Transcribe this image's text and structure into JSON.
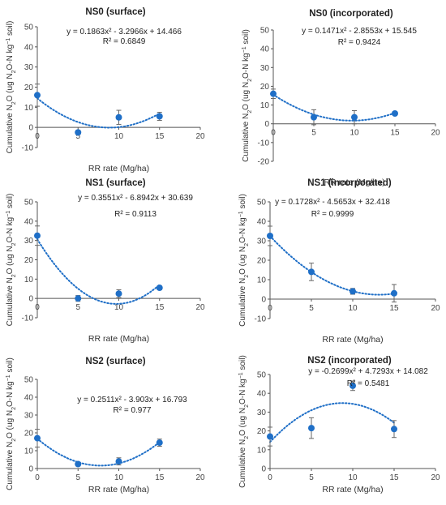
{
  "chart_data": [
    {
      "type": "scatter",
      "title": "NS0 (surface)",
      "xlabel": "RR rate (Mg/ha)",
      "ylabel_main": "Cumulative N",
      "ylabel_rest": "O (ug N",
      "ylabel_rest2": "O-N kg",
      "ylabel_rest3": " soil)",
      "xlim": [
        0,
        20
      ],
      "ylim": [
        -10,
        50
      ],
      "xticks": [
        "0",
        "5",
        "10",
        "15",
        "20"
      ],
      "yticks": [
        "-10",
        "0",
        "10",
        "20",
        "30",
        "40",
        "50"
      ],
      "x": [
        0,
        5,
        10,
        15
      ],
      "y": [
        16,
        -2.5,
        5,
        5.5
      ],
      "err": [
        5.5,
        1,
        3.5,
        2
      ],
      "fit": [
        0.1863,
        -3.2966,
        14.466
      ],
      "eq_text": "y = 0.1863x² - 3.2966x + 14.466",
      "r2_text": "R² = 0.6849",
      "color": "#1f6fc7"
    },
    {
      "type": "scatter",
      "title": "NS0 (incorporated)",
      "xlabel": "RR rate (Mg/ha)",
      "ylabel_main": "Cumulative N",
      "ylabel_rest": "O (ug N",
      "ylabel_rest2": "O-N kg",
      "ylabel_rest3": " soil)",
      "xlim": [
        0,
        20
      ],
      "ylim": [
        -20,
        50
      ],
      "xticks": [
        "0",
        "5",
        "10",
        "15",
        "20"
      ],
      "yticks": [
        "-20",
        "-10",
        "0",
        "10",
        "20",
        "30",
        "40",
        "50"
      ],
      "x": [
        0,
        5,
        10,
        15
      ],
      "y": [
        16,
        3.5,
        3.5,
        5.5
      ],
      "err": [
        2.5,
        4,
        3.5,
        1
      ],
      "fit": [
        0.1471,
        -2.8553,
        15.545
      ],
      "eq_text": "y = 0.1471x² - 2.8553x + 15.545",
      "r2_text": "R² = 0.9424",
      "color": "#1f6fc7"
    },
    {
      "type": "scatter",
      "title": "NS1 (surface)",
      "xlabel": "RR rate (Mg/ha)",
      "ylabel_main": "Cumulative N",
      "ylabel_rest": "O (ug N",
      "ylabel_rest2": "O-N kg",
      "ylabel_rest3": " soil)",
      "xlim": [
        0,
        20
      ],
      "ylim": [
        -10,
        50
      ],
      "xticks": [
        "0",
        "5",
        "10",
        "15",
        "20"
      ],
      "yticks": [
        "-10",
        "0",
        "10",
        "20",
        "30",
        "40",
        "50"
      ],
      "x": [
        0,
        5,
        10,
        15
      ],
      "y": [
        32.5,
        0,
        2.5,
        5.5
      ],
      "err": [
        5,
        1.5,
        2,
        1
      ],
      "fit": [
        0.3551,
        -6.8942,
        30.639
      ],
      "eq_text": "y = 0.3551x² - 6.8942x + 30.639",
      "r2_text": "R² = 0.9113",
      "color": "#1f6fc7"
    },
    {
      "type": "scatter",
      "title": "NS1 (incorporated)",
      "xlabel": "RR rate (Mg/ha)",
      "ylabel_main": "Cumulative N",
      "ylabel_rest": "O (ug N",
      "ylabel_rest2": "O-N kg",
      "ylabel_rest3": " soil)",
      "xlim": [
        0,
        20
      ],
      "ylim": [
        -10,
        50
      ],
      "xticks": [
        "0",
        "5",
        "10",
        "15",
        "20"
      ],
      "yticks": [
        "-10",
        "0",
        "10",
        "20",
        "30",
        "40",
        "50"
      ],
      "x": [
        0,
        5,
        10,
        15
      ],
      "y": [
        32.5,
        14,
        4,
        3
      ],
      "err": [
        5,
        4.5,
        1.5,
        4.5
      ],
      "fit": [
        0.1728,
        -4.5653,
        32.418
      ],
      "eq_text": "y = 0.1728x² - 4.5653x + 32.418",
      "r2_text": "R² = 0.9999",
      "color": "#1f6fc7"
    },
    {
      "type": "scatter",
      "title": "NS2 (surface)",
      "xlabel": "RR rate (Mg/ha)",
      "ylabel_main": "Cumulative N",
      "ylabel_rest": "O (ug N",
      "ylabel_rest2": "O-N kg",
      "ylabel_rest3": " soil)",
      "xlim": [
        0,
        20
      ],
      "ylim": [
        0,
        50
      ],
      "xticks": [
        "0",
        "5",
        "10",
        "15",
        "20"
      ],
      "yticks": [
        "0",
        "10",
        "20",
        "30",
        "40",
        "50"
      ],
      "x": [
        0,
        5,
        10,
        15
      ],
      "y": [
        17,
        2.5,
        4,
        14.5
      ],
      "err": [
        5,
        1,
        2,
        2
      ],
      "fit": [
        0.2511,
        -3.903,
        16.793
      ],
      "eq_text": "y = 0.2511x² - 3.903x + 16.793",
      "r2_text": "R² = 0.977",
      "color": "#1f6fc7"
    },
    {
      "type": "scatter",
      "title": "NS2 (incorporated)",
      "xlabel": "RR rate (Mg/ha)",
      "ylabel_main": "Cumulative N",
      "ylabel_rest": "O (ug N",
      "ylabel_rest2": "O-N kg",
      "ylabel_rest3": " soil)",
      "xlim": [
        0,
        20
      ],
      "ylim": [
        0,
        50
      ],
      "xticks": [
        "0",
        "5",
        "10",
        "15",
        "20"
      ],
      "yticks": [
        "0",
        "10",
        "20",
        "30",
        "40",
        "50"
      ],
      "x": [
        0,
        5,
        10,
        15
      ],
      "y": [
        17,
        21.5,
        44,
        21
      ],
      "err": [
        5,
        5.5,
        2.5,
        4.5
      ],
      "fit": [
        -0.2699,
        4.7293,
        14.082
      ],
      "eq_text": "y = -0.2699x² + 4.7293x + 14.082",
      "r2_text": "R² = 0.5481",
      "color": "#1f6fc7"
    }
  ]
}
